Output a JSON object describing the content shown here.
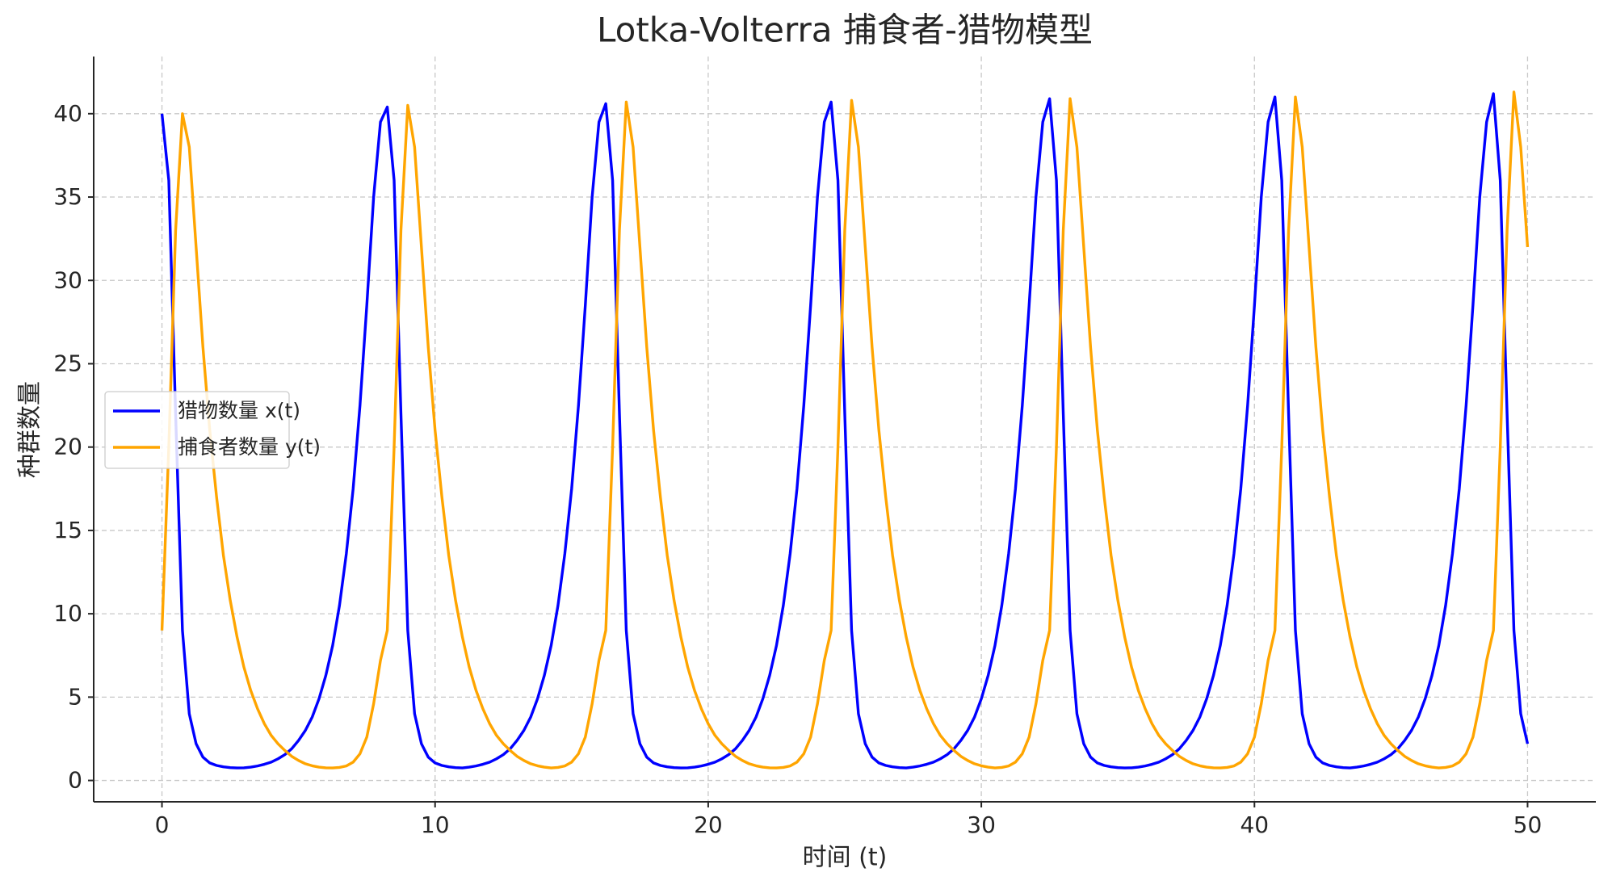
{
  "chart_data": {
    "type": "line",
    "title": "Lotka-Volterra 捕食者-猎物模型",
    "x_label": "时间 (t)",
    "y_label": "种群数量",
    "xlim": [
      -2.5,
      52.5
    ],
    "xticks": [
      0,
      10,
      20,
      30,
      40,
      50
    ],
    "ylim": [
      -1.28,
      43.43
    ],
    "yticks": [
      0,
      5,
      10,
      15,
      20,
      25,
      30,
      35,
      40
    ],
    "grid": true,
    "legend": "center left",
    "x": [
      0,
      0.25,
      0.5,
      0.75,
      1,
      1.25,
      1.5,
      1.75,
      2,
      2.25,
      2.5,
      2.75,
      3,
      3.25,
      3.5,
      3.75,
      4,
      4.25,
      4.5,
      4.75,
      5,
      5.25,
      5.5,
      5.75,
      6,
      6.25,
      6.5,
      6.75,
      7,
      7.25,
      7.5,
      7.75,
      8,
      8.25,
      8.5,
      8.75,
      9,
      9.25,
      9.5,
      9.75,
      10,
      10.25,
      10.5,
      10.75,
      11,
      11.25,
      11.5,
      11.75,
      12,
      12.25,
      12.5,
      12.75,
      13,
      13.25,
      13.5,
      13.75,
      14,
      14.25,
      14.5,
      14.75,
      15,
      15.25,
      15.5,
      15.75,
      16,
      16.25,
      16.5,
      16.75,
      17,
      17.25,
      17.5,
      17.75,
      18,
      18.25,
      18.5,
      18.75,
      19,
      19.25,
      19.5,
      19.75,
      20,
      20.25,
      20.5,
      20.75,
      21,
      21.25,
      21.5,
      21.75,
      22,
      22.25,
      22.5,
      22.75,
      23,
      23.25,
      23.5,
      23.75,
      24,
      24.25,
      24.5,
      24.75,
      25,
      25.25,
      25.5,
      25.75,
      26,
      26.25,
      26.5,
      26.75,
      27,
      27.25,
      27.5,
      27.75,
      28,
      28.25,
      28.5,
      28.75,
      29,
      29.25,
      29.5,
      29.75,
      30,
      30.25,
      30.5,
      30.75,
      31,
      31.25,
      31.5,
      31.75,
      32,
      32.25,
      32.5,
      32.75,
      33,
      33.25,
      33.5,
      33.75,
      34,
      34.25,
      34.5,
      34.75,
      35,
      35.25,
      35.5,
      35.75,
      36,
      36.25,
      36.5,
      36.75,
      37,
      37.25,
      37.5,
      37.75,
      38,
      38.25,
      38.5,
      38.75,
      39,
      39.25,
      39.5,
      39.75,
      40,
      40.25,
      40.5,
      40.75,
      41,
      41.25,
      41.5,
      41.75,
      42,
      42.25,
      42.5,
      42.75,
      43,
      43.25,
      43.5,
      43.75,
      44,
      44.25,
      44.5,
      44.75,
      45,
      45.25,
      45.5,
      45.75,
      46,
      46.25,
      46.5,
      46.75,
      47,
      47.25,
      47.5,
      47.75,
      48,
      48.25,
      48.5,
      48.75,
      49,
      49.25,
      49.5,
      49.75,
      50
    ],
    "series": [
      {
        "name": "猎物数量 x(t)",
        "color": "#0000ff",
        "values": [
          40,
          36,
          22,
          9,
          4,
          2.2,
          1.4,
          1.05,
          0.9,
          0.82,
          0.77,
          0.75,
          0.76,
          0.8,
          0.87,
          0.97,
          1.1,
          1.3,
          1.55,
          1.9,
          2.4,
          3,
          3.8,
          4.9,
          6.3,
          8.1,
          10.5,
          13.6,
          17.5,
          22.5,
          28.5,
          35,
          39.5,
          40.4,
          36,
          22,
          9,
          4,
          2.2,
          1.4,
          1.05,
          0.9,
          0.82,
          0.77,
          0.75,
          0.8,
          0.87,
          0.97,
          1.1,
          1.3,
          1.55,
          1.9,
          2.4,
          3,
          3.8,
          4.9,
          6.3,
          8.1,
          10.5,
          13.6,
          17.5,
          22.5,
          28.5,
          35,
          39.5,
          40.6,
          36,
          22,
          9,
          4,
          2.2,
          1.4,
          1.05,
          0.9,
          0.82,
          0.77,
          0.75,
          0.76,
          0.8,
          0.87,
          0.97,
          1.1,
          1.3,
          1.55,
          1.9,
          2.4,
          3,
          3.8,
          4.9,
          6.3,
          8.1,
          10.5,
          13.6,
          17.5,
          22.5,
          28.5,
          35,
          39.5,
          40.7,
          36,
          22,
          9,
          4,
          2.2,
          1.4,
          1.05,
          0.9,
          0.82,
          0.77,
          0.75,
          0.8,
          0.87,
          0.97,
          1.1,
          1.3,
          1.55,
          1.9,
          2.4,
          3,
          3.8,
          4.9,
          6.3,
          8.1,
          10.5,
          13.6,
          17.5,
          22.5,
          28.5,
          35,
          39.5,
          40.9,
          36,
          22,
          9,
          4,
          2.2,
          1.4,
          1.05,
          0.9,
          0.82,
          0.77,
          0.75,
          0.76,
          0.8,
          0.87,
          0.97,
          1.1,
          1.3,
          1.55,
          1.9,
          2.4,
          3,
          3.8,
          4.9,
          6.3,
          8.1,
          10.5,
          13.6,
          17.5,
          22.5,
          28.5,
          35,
          39.5,
          41,
          36,
          22,
          9,
          4,
          2.2,
          1.4,
          1.05,
          0.9,
          0.82,
          0.77,
          0.75,
          0.8,
          0.87,
          0.97,
          1.1,
          1.3,
          1.55,
          1.9,
          2.4,
          3,
          3.8,
          4.9,
          6.3,
          8.1,
          10.5,
          13.6,
          17.5,
          22.5,
          28.5,
          35,
          39.5,
          41.2,
          36,
          22,
          9,
          4,
          2.2
        ]
      },
      {
        "name": "捕食者数量 y(t)",
        "color": "#ffa500",
        "values": [
          9,
          20,
          33,
          40,
          38,
          32,
          26,
          21,
          17,
          13.5,
          10.8,
          8.6,
          6.8,
          5.4,
          4.3,
          3.4,
          2.7,
          2.2,
          1.8,
          1.45,
          1.2,
          1,
          0.88,
          0.8,
          0.76,
          0.75,
          0.78,
          0.87,
          1.1,
          1.6,
          2.6,
          4.6,
          7.2,
          9,
          20,
          33,
          40.5,
          38,
          32,
          26,
          21,
          17,
          13.5,
          10.8,
          8.6,
          6.8,
          5.4,
          4.3,
          3.4,
          2.7,
          2.2,
          1.8,
          1.45,
          1.2,
          1,
          0.88,
          0.8,
          0.75,
          0.78,
          0.87,
          1.1,
          1.6,
          2.6,
          4.6,
          7.2,
          9,
          20,
          33,
          40.7,
          38,
          32,
          26,
          21,
          17,
          13.5,
          10.8,
          8.6,
          6.8,
          5.4,
          4.3,
          3.4,
          2.7,
          2.2,
          1.8,
          1.45,
          1.2,
          1,
          0.88,
          0.8,
          0.76,
          0.75,
          0.78,
          0.87,
          1.1,
          1.6,
          2.6,
          4.6,
          7.2,
          9,
          20,
          33,
          40.8,
          38,
          32,
          26,
          21,
          17,
          13.5,
          10.8,
          8.6,
          6.8,
          5.4,
          4.3,
          3.4,
          2.7,
          2.2,
          1.8,
          1.45,
          1.2,
          1,
          0.88,
          0.8,
          0.75,
          0.78,
          0.87,
          1.1,
          1.6,
          2.6,
          4.6,
          7.2,
          9,
          20,
          33,
          40.9,
          38,
          32,
          26,
          21,
          17,
          13.5,
          10.8,
          8.6,
          6.8,
          5.4,
          4.3,
          3.4,
          2.7,
          2.2,
          1.8,
          1.45,
          1.2,
          1,
          0.88,
          0.8,
          0.76,
          0.75,
          0.78,
          0.87,
          1.1,
          1.6,
          2.6,
          4.6,
          7.2,
          9,
          20,
          33,
          41,
          38,
          32,
          26,
          21,
          17,
          13.5,
          10.8,
          8.6,
          6.8,
          5.4,
          4.3,
          3.4,
          2.7,
          2.2,
          1.8,
          1.45,
          1.2,
          1,
          0.88,
          0.8,
          0.75,
          0.78,
          0.87,
          1.1,
          1.6,
          2.6,
          4.6,
          7.2,
          9,
          20,
          33,
          41.3,
          38,
          32
        ]
      }
    ]
  }
}
